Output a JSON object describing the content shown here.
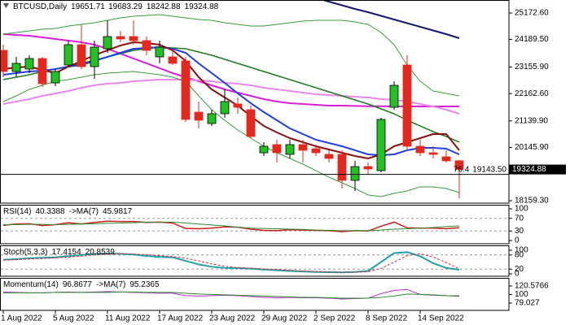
{
  "chart_data": [
    {
      "type": "candlestick",
      "title": "BTCUSD,Daily",
      "categories": [
        "1 Aug 2022",
        null,
        null,
        null,
        "5 Aug 2022",
        null,
        null,
        null,
        "11 Aug 2022",
        null,
        null,
        null,
        "17 Aug 2022",
        null,
        null,
        null,
        "23 Aug 2022",
        null,
        null,
        null,
        "29 Aug 2022",
        null,
        null,
        null,
        "2 Sep 2022",
        null,
        null,
        null,
        "8 Sep 2022",
        null,
        null,
        null,
        "14 Sep 2022",
        null,
        null,
        null
      ],
      "open": [
        23776,
        22986,
        23077,
        23472,
        22561,
        23229,
        23988,
        23168,
        23836,
        24292,
        24292,
        24140,
        23533,
        23533,
        23381,
        21468,
        21043,
        21408,
        21772,
        21559,
        19950,
        20254,
        19890,
        20254,
        20102,
        19890,
        19890,
        18918,
        19434,
        19282,
        21650,
        23229,
        20193,
        19950,
        19799,
        19651.71
      ],
      "high": [
        23988,
        23533,
        23594,
        23533,
        23077,
        24140,
        24747,
        24140,
        24899,
        24504,
        24899,
        24292,
        24140,
        23836,
        23533,
        21863,
        21559,
        22318,
        22015,
        21711,
        20345,
        20436,
        20436,
        20436,
        20254,
        20042,
        20042,
        19647,
        19586,
        21256,
        22622,
        23594,
        20436,
        20193,
        20042,
        19683.29
      ],
      "low": [
        22774,
        22774,
        22926,
        22410,
        22440,
        23168,
        23077,
        22713,
        23685,
        24079,
        23988,
        23594,
        23290,
        23229,
        21104,
        20861,
        20952,
        21256,
        21408,
        20497,
        19829,
        19586,
        19738,
        19586,
        19829,
        19586,
        18615,
        18523,
        19131,
        19222,
        21559,
        20042,
        19829,
        19738,
        19586,
        18242.88
      ],
      "close": [
        22986,
        23290,
        23472,
        22531,
        22986,
        23988,
        23168,
        23897,
        24292,
        24201,
        24140,
        23776,
        23897,
        23290,
        21195,
        21165,
        21408,
        21863,
        21650,
        20558,
        20193,
        19950,
        20254,
        20042,
        19950,
        19738,
        18918,
        19434,
        19343,
        21195,
        22470,
        20193,
        19950,
        19890,
        19647,
        19324.88
      ],
      "up_color": "#22c022",
      "down_color": "#e5281e",
      "series": [
        {
          "color": "#16166e",
          "width": 2,
          "values": [
            null,
            null,
            null,
            null,
            null,
            null,
            null,
            null,
            null,
            null,
            null,
            null,
            null,
            null,
            null,
            null,
            null,
            null,
            null,
            null,
            null,
            null,
            null,
            null,
            25734,
            25597,
            25461,
            25324,
            25203,
            25066,
            24929,
            24793,
            24656,
            24519,
            24383,
            24231
          ]
        },
        {
          "color": "#d81fd8",
          "width": 2,
          "values": [
            24383,
            24353,
            24322,
            24261,
            24201,
            24140,
            24079,
            23988,
            23836,
            23654,
            23472,
            23290,
            23108,
            22926,
            22774,
            22622,
            22470,
            22318,
            22197,
            22076,
            21954,
            21863,
            21802,
            21772,
            21742,
            21711,
            21711,
            21700,
            21690,
            21690,
            21685,
            21681,
            21681,
            21681,
            21681,
            21681
          ]
        },
        {
          "color": "#e888e8",
          "width": 2,
          "values": [
            21772,
            21863,
            21954,
            22076,
            22167,
            22258,
            22379,
            22470,
            22531,
            22561,
            22622,
            22652,
            22683,
            22683,
            22683,
            22652,
            22622,
            22561,
            22531,
            22470,
            22379,
            22318,
            22258,
            22197,
            22136,
            22106,
            22076,
            22045,
            22015,
            21954,
            21924,
            21863,
            21772,
            21681,
            21559,
            21408
          ]
        },
        {
          "color": "#1e7a1e",
          "width": 1.5,
          "values": [
            22683,
            22774,
            22865,
            22986,
            23077,
            23168,
            23290,
            23411,
            23533,
            23654,
            23776,
            23836,
            23897,
            23867,
            23836,
            23715,
            23594,
            23442,
            23290,
            23138,
            22986,
            22835,
            22683,
            22531,
            22379,
            22227,
            22076,
            21924,
            21772,
            21590,
            21408,
            21165,
            20952,
            20740,
            20558,
            20345
          ]
        },
        {
          "color": "#1f3fdf",
          "width": 2,
          "values": [
            22865,
            22926,
            22986,
            23016,
            23077,
            23168,
            23229,
            23381,
            23533,
            23685,
            23836,
            23867,
            23897,
            23836,
            23685,
            23290,
            22926,
            22561,
            22167,
            21802,
            21468,
            21165,
            20861,
            20649,
            20436,
            20315,
            20193,
            20042,
            19890,
            19859,
            19890,
            20042,
            20132,
            20132,
            20102,
            19890
          ]
        },
        {
          "color": "#8b1010",
          "width": 2,
          "values": [
            23077,
            23138,
            23168,
            23047,
            22926,
            23168,
            23381,
            23594,
            23776,
            23958,
            24079,
            24049,
            23988,
            23776,
            23381,
            22774,
            22318,
            22015,
            21711,
            21316,
            20952,
            20709,
            20497,
            20345,
            20193,
            20072,
            19950,
            19829,
            19738,
            19890,
            20193,
            20345,
            20497,
            20649,
            20649,
            20042
          ]
        },
        {
          "color": "#3a9a3a",
          "width": 1,
          "values": [
            24383,
            24444,
            24504,
            24565,
            24595,
            24686,
            24747,
            24808,
            24899,
            24990,
            25051,
            25081,
            25112,
            25051,
            24990,
            24929,
            24899,
            24808,
            24747,
            24686,
            24686,
            24747,
            24808,
            24868,
            24899,
            24899,
            24899,
            24838,
            24747,
            24444,
            23988,
            23229,
            22622,
            22258,
            22167,
            22076
          ]
        },
        {
          "color": "#3a9a3a",
          "width": 1,
          "values": [
            21863,
            22076,
            22318,
            22470,
            22622,
            22683,
            22774,
            22865,
            22926,
            22956,
            22986,
            22926,
            22865,
            22774,
            22622,
            22076,
            21559,
            21165,
            20800,
            20497,
            20193,
            19950,
            19738,
            19525,
            19282,
            19039,
            18827,
            18615,
            18372,
            18311,
            18432,
            18523,
            18675,
            18675,
            18615,
            18463
          ]
        }
      ],
      "ylim": [
        18068,
        25658
      ],
      "yticks": [
        {
          "value": 25172.6,
          "label": "25172.60"
        },
        {
          "value": 24189.5,
          "label": "24189.50"
        },
        {
          "value": 23155.9,
          "label": "23155.90"
        },
        {
          "value": 22162.6,
          "label": "22162.60"
        },
        {
          "value": 21139.9,
          "label": "21139.90"
        },
        {
          "value": 20145.9,
          "label": "20145.90"
        },
        {
          "value": 18159.3,
          "label": "18159.30"
        }
      ],
      "fib_level": {
        "ratio": 76.4,
        "price": 19143.5,
        "price_label": "19143.50"
      }
    },
    {
      "type": "line",
      "series": [
        {
          "name": "RSI(14)",
          "color": "#c81e1e",
          "width": 1.5,
          "values": [
            48,
            52,
            53,
            47,
            50,
            56,
            52,
            57,
            61,
            60,
            60,
            57,
            58,
            55,
            38,
            37,
            39,
            43,
            42,
            36,
            32,
            31,
            34,
            33,
            32,
            31,
            28,
            31,
            30,
            45,
            58,
            40,
            39,
            39,
            37,
            40.3388
          ]
        },
        {
          "name": "->MA(7)",
          "color": "#2e8b2e",
          "width": 1,
          "values": [
            50,
            50,
            51,
            51,
            50,
            51,
            52,
            53,
            54,
            55,
            56,
            58,
            58,
            58,
            55,
            52,
            49,
            46,
            42,
            39,
            38,
            37,
            36,
            35,
            33,
            32,
            31,
            31,
            31,
            33,
            36,
            37,
            39,
            41,
            44,
            45.9817
          ]
        }
      ],
      "ylim": [
        -10.3,
        112.8
      ],
      "yticks": [
        100,
        70,
        30,
        0
      ],
      "levels": [
        70,
        30
      ]
    },
    {
      "type": "line",
      "title": "Stoch(5,3,3)",
      "series": [
        {
          "color": "#22a0a8",
          "width": 2,
          "values": [
            60,
            62,
            66,
            68,
            70,
            75,
            80,
            84,
            86,
            85,
            82,
            76,
            72,
            70,
            55,
            40,
            30,
            25,
            24,
            22,
            18,
            15,
            12,
            10,
            8,
            7,
            6,
            8,
            12,
            50,
            88,
            92,
            75,
            45,
            25,
            17.4154
          ]
        },
        {
          "color": "#d83030",
          "width": 1,
          "dash": true,
          "values": [
            58,
            60,
            63,
            65,
            68,
            71,
            75,
            80,
            84,
            85,
            84,
            81,
            77,
            73,
            66,
            55,
            42,
            32,
            26,
            24,
            21,
            18,
            15,
            12,
            10,
            8,
            7,
            7,
            9,
            23,
            50,
            77,
            85,
            71,
            48,
            20.8539
          ]
        }
      ],
      "ylim": [
        -10.3,
        120.7
      ],
      "yticks": [
        100,
        80,
        20,
        0
      ],
      "levels": [
        80,
        20
      ]
    },
    {
      "type": "line",
      "series": [
        {
          "name": "Momentum(14)",
          "color": "#b030c8",
          "width": 1,
          "values": [
            106,
            105,
            104,
            104,
            105,
            106,
            105,
            106,
            107,
            106,
            105,
            104,
            103,
            103,
            97,
            96,
            97,
            98,
            97,
            95,
            93,
            92,
            93,
            92,
            92,
            91,
            89,
            90,
            91,
            102,
            110,
            112,
            100,
            98,
            97,
            96.8677
          ]
        },
        {
          "name": "->MA(7)",
          "color": "#2e8b2e",
          "width": 1,
          "values": [
            104,
            104,
            104,
            104,
            105,
            105,
            105,
            105,
            105,
            106,
            106,
            105,
            105,
            105,
            103,
            101,
            100,
            99,
            98,
            97,
            96,
            95,
            94,
            93,
            93,
            92,
            91,
            91,
            91,
            93,
            96,
            101,
            100,
            99,
            97,
            95.2365
          ]
        }
      ],
      "ylim": [
        61.2,
        140.4
      ],
      "yticks": [
        120.5766,
        100,
        79.027
      ]
    }
  ]
}
